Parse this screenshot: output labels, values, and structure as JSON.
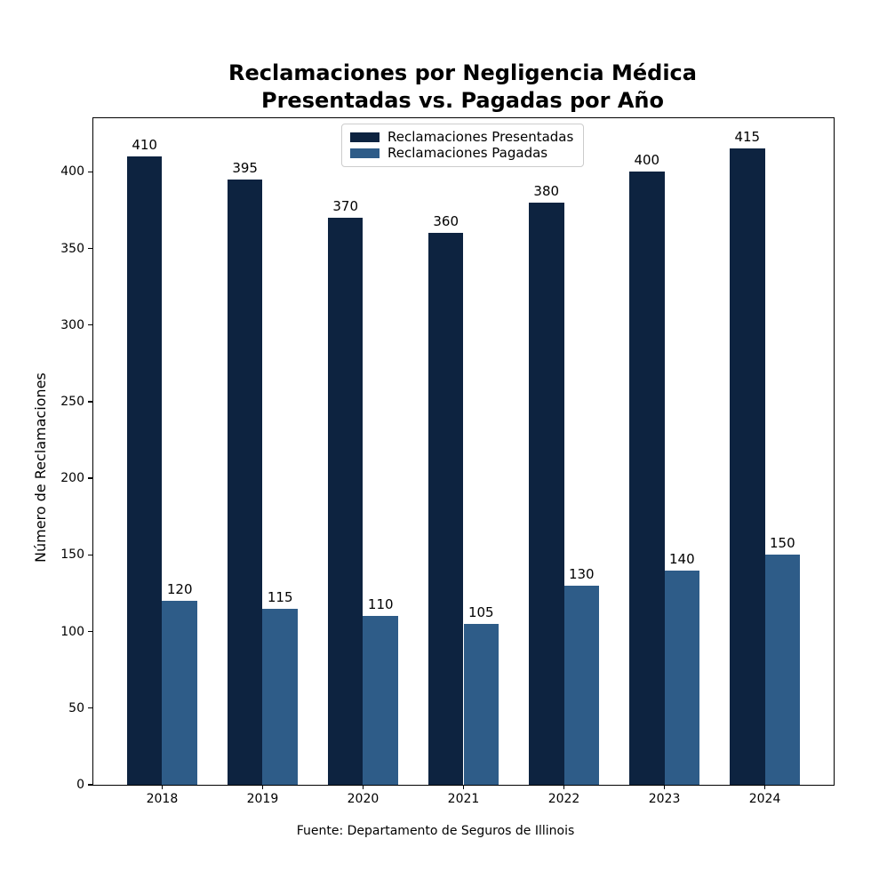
{
  "source_note": "Fuente: Departamento de Seguros de Illinois",
  "colors": {
    "presentadas": "#0d2340",
    "pagadas": "#2e5c88",
    "axis": "#000000",
    "legend_border": "#cccccc",
    "background": "#ffffff"
  },
  "chart_data": {
    "type": "bar",
    "title": "Reclamaciones por Negligencia Médica\nPresentadas vs. Pagadas por Año",
    "title_lines": [
      "Reclamaciones por Negligencia Médica",
      "Presentadas vs. Pagadas por Año"
    ],
    "categories": [
      "2018",
      "2019",
      "2020",
      "2021",
      "2022",
      "2023",
      "2024"
    ],
    "series": [
      {
        "key": "presentadas",
        "name": "Reclamaciones Presentadas",
        "color": "#0d2340",
        "values": [
          410,
          395,
          370,
          360,
          380,
          400,
          415
        ]
      },
      {
        "key": "pagadas",
        "name": "Reclamaciones Pagadas",
        "color": "#2e5c88",
        "values": [
          120,
          115,
          110,
          105,
          130,
          140,
          150
        ]
      }
    ],
    "xlabel": "",
    "ylabel": "Número de Reclamaciones",
    "ylim": [
      0,
      435
    ],
    "yticks": [
      0,
      50,
      100,
      150,
      200,
      250,
      300,
      350,
      400
    ],
    "bar_labels": true,
    "grid": false,
    "legend_position": "upper center"
  }
}
